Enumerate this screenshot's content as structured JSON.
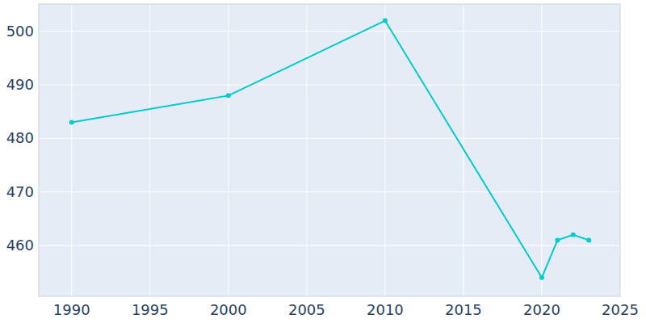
{
  "chart_data": {
    "type": "line",
    "x": [
      1990,
      2000,
      2010,
      2020,
      2021,
      2022,
      2023
    ],
    "values": [
      483,
      488,
      502,
      454,
      461,
      462,
      461
    ],
    "color": "#00cccc",
    "marker": "circle",
    "xlim": [
      1987.9,
      2025
    ],
    "xticks": [
      1990,
      1995,
      2000,
      2005,
      2010,
      2015,
      2020,
      2025
    ],
    "ylim": [
      450.5,
      505.1
    ],
    "yticks": [
      460,
      470,
      480,
      490,
      500
    ],
    "grid": true
  }
}
